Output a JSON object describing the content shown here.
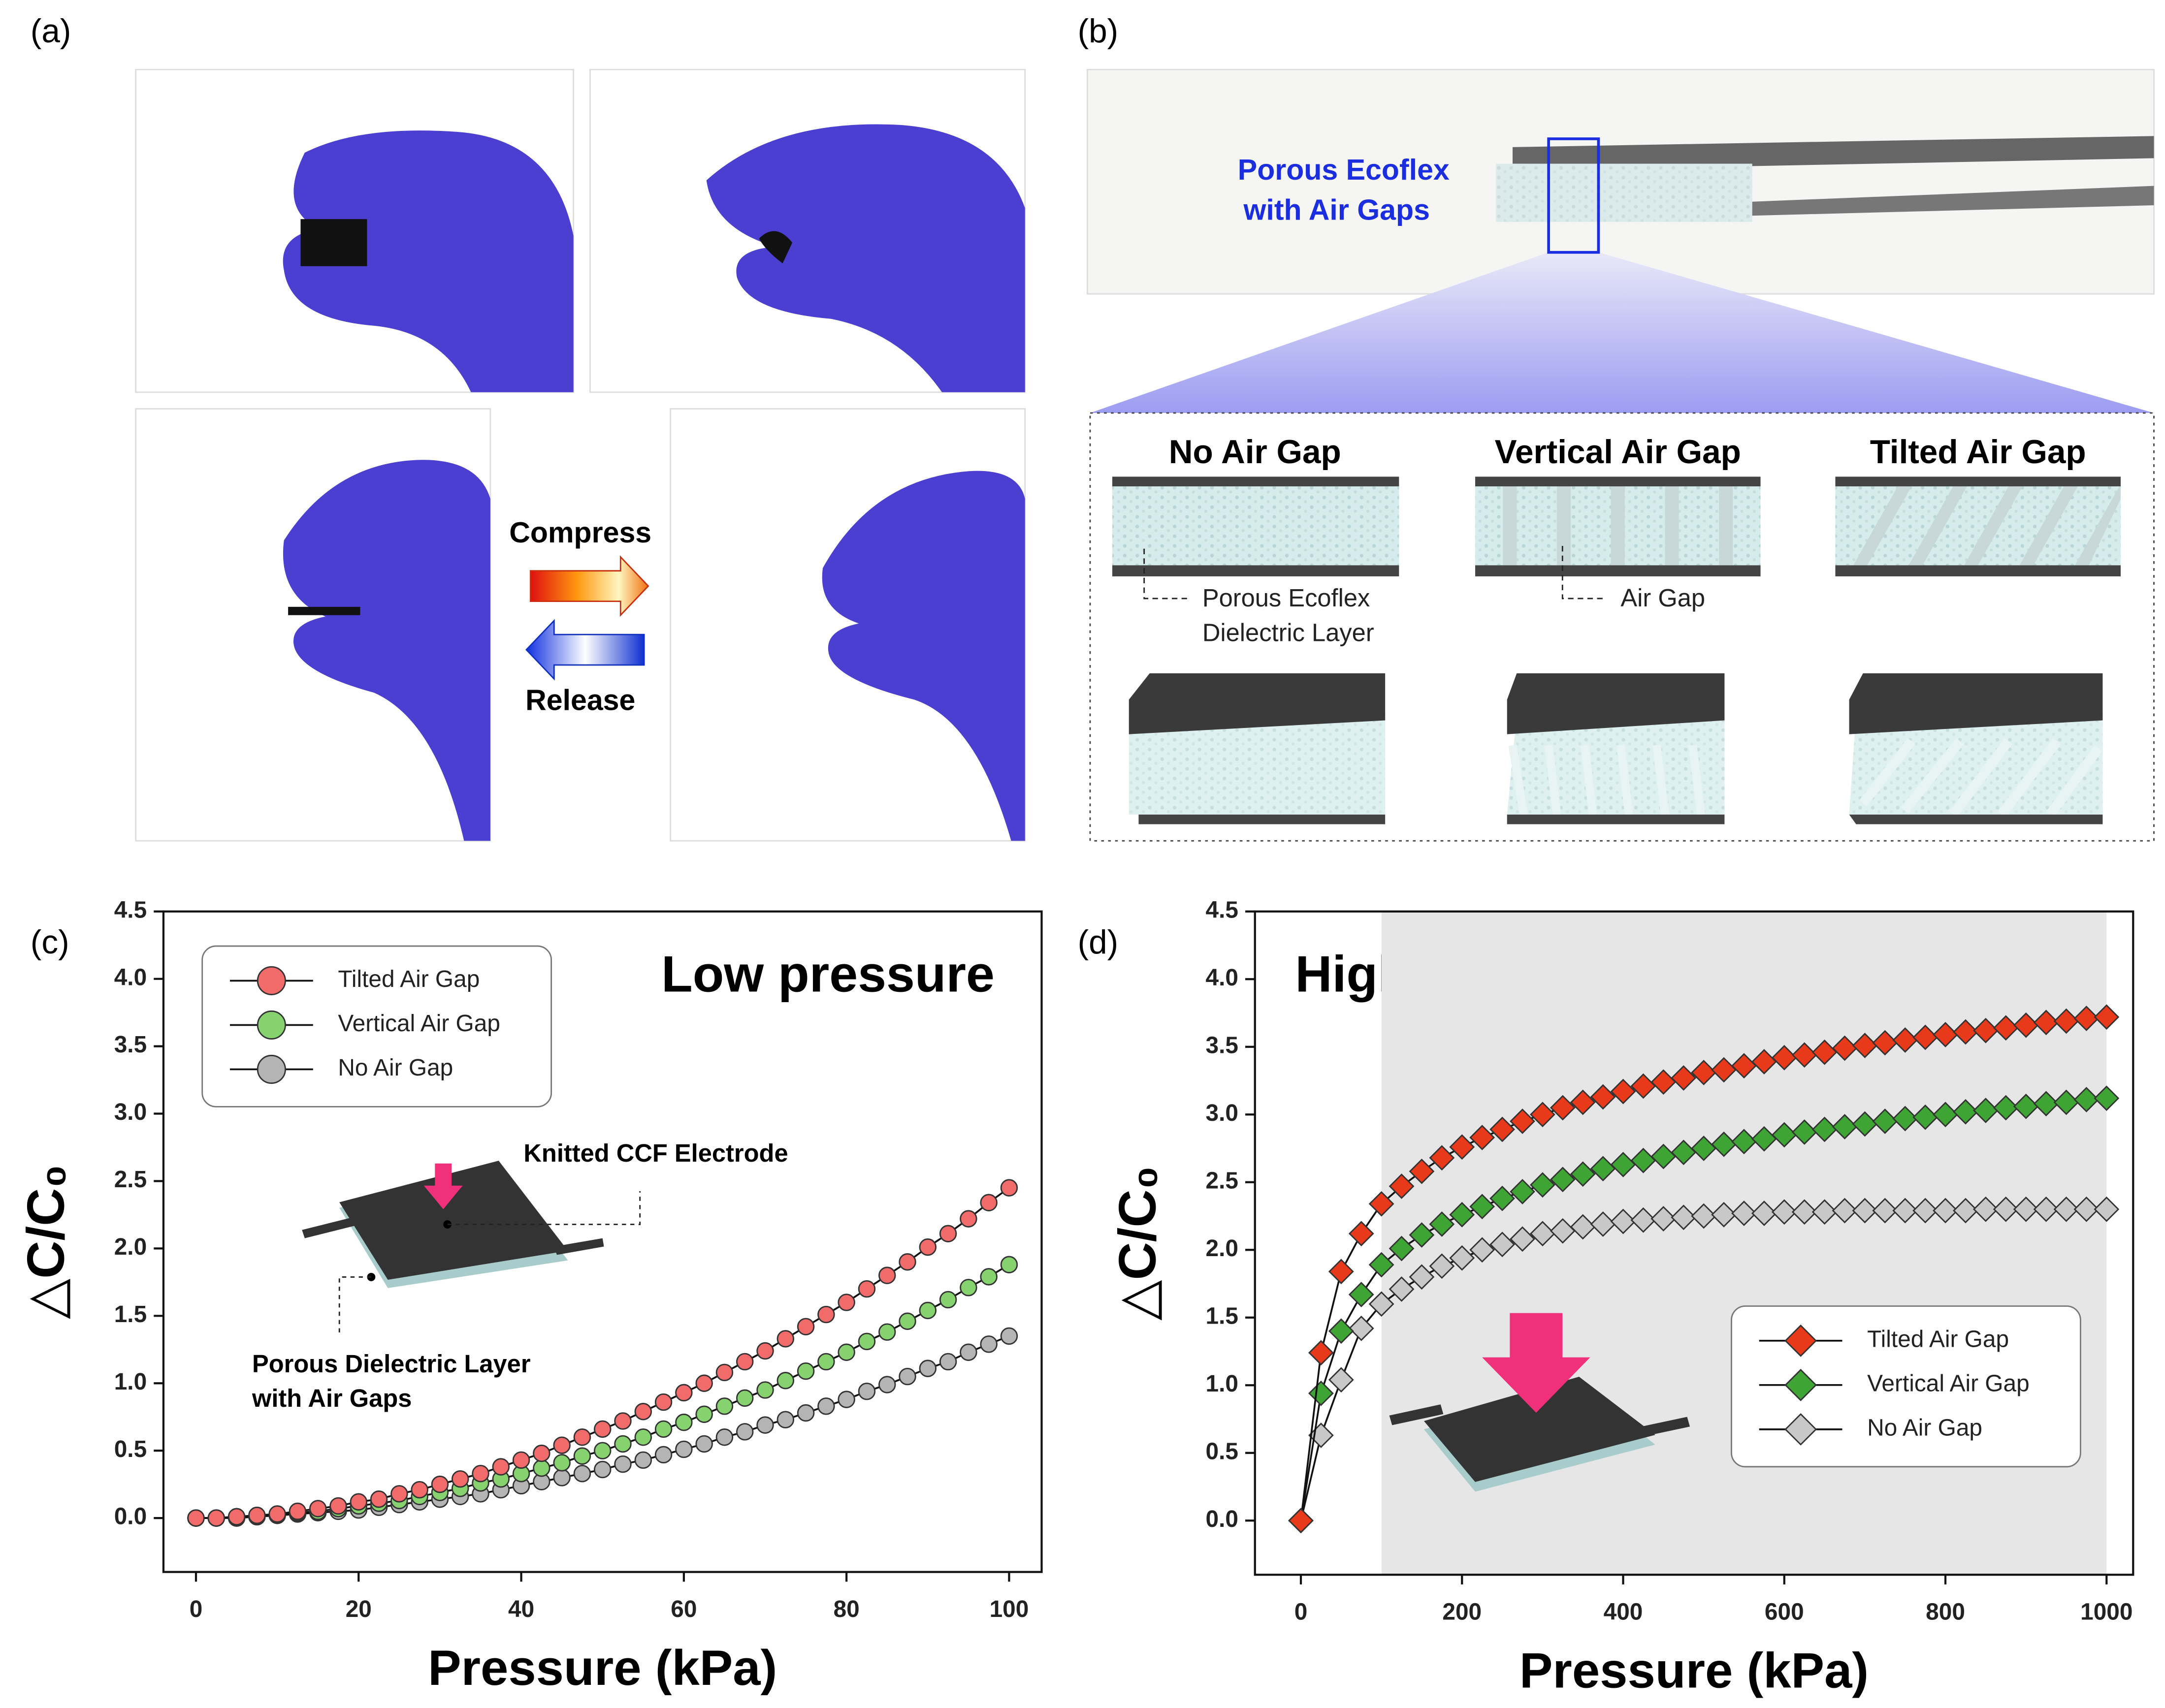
{
  "panel_labels": [
    "(a)",
    "(b)",
    "(c)",
    "(d)"
  ],
  "panel_a": {
    "compress": "Compress",
    "release": "Release"
  },
  "panel_b": {
    "sample_label": [
      "Porous Ecoflex",
      "with Air Gaps"
    ],
    "structures": [
      "No Air Gap",
      "Vertical Air Gap",
      "Tilted Air Gap"
    ],
    "callouts": {
      "dielectric": [
        "Porous Ecoflex",
        "Dielectric Layer"
      ],
      "air_gap": "Air Gap"
    }
  },
  "chart_data": [
    {
      "type": "line",
      "annotation": "Low pressure",
      "xlabel": "Pressure (kPa)",
      "ylabel": "△C/C₀",
      "marker": "circle",
      "legend": "upper left",
      "inset_labels": [
        "Knitted CCF Electrode",
        "Porous Dielectric Layer",
        "with Air Gaps"
      ],
      "xlim": [
        -4,
        104
      ],
      "ylim": [
        -0.4,
        4.5
      ],
      "xticks": [
        0,
        20,
        40,
        60,
        80,
        100
      ],
      "yticks": [
        {
          "value": 0,
          "label": "0.0"
        },
        0.5,
        {
          "value": 1,
          "label": "1.0"
        },
        1.5,
        {
          "value": 2,
          "label": "2.0"
        },
        2.5,
        {
          "value": 3,
          "label": "3.0"
        },
        3.5,
        {
          "value": 4,
          "label": "4.0"
        },
        4.5
      ],
      "x": [
        0,
        2.5,
        5,
        7.5,
        10,
        12.5,
        15,
        17.5,
        20,
        22.5,
        25,
        27.5,
        30,
        32.5,
        35,
        37.5,
        40,
        42.5,
        45,
        47.5,
        50,
        52.5,
        55,
        57.5,
        60,
        62.5,
        65,
        67.5,
        70,
        72.5,
        75,
        77.5,
        80,
        82.5,
        85,
        87.5,
        90,
        92.5,
        95,
        97.5,
        100
      ],
      "series": [
        {
          "name": "Tilted Air Gap",
          "color": "#f26b6b",
          "values": [
            0,
            0.0,
            0.01,
            0.02,
            0.03,
            0.05,
            0.07,
            0.09,
            0.12,
            0.14,
            0.18,
            0.21,
            0.25,
            0.29,
            0.33,
            0.38,
            0.43,
            0.48,
            0.54,
            0.6,
            0.66,
            0.72,
            0.79,
            0.86,
            0.93,
            1.0,
            1.08,
            1.16,
            1.24,
            1.33,
            1.42,
            1.51,
            1.6,
            1.7,
            1.8,
            1.9,
            2.01,
            2.11,
            2.22,
            2.34,
            2.45
          ]
        },
        {
          "name": "Vertical Air Gap",
          "color": "#86d26f",
          "values": [
            0,
            0.0,
            0.01,
            0.01,
            0.02,
            0.04,
            0.05,
            0.07,
            0.09,
            0.11,
            0.13,
            0.16,
            0.19,
            0.22,
            0.26,
            0.29,
            0.33,
            0.37,
            0.41,
            0.46,
            0.5,
            0.55,
            0.6,
            0.66,
            0.71,
            0.77,
            0.83,
            0.89,
            0.95,
            1.02,
            1.09,
            1.16,
            1.23,
            1.31,
            1.38,
            1.46,
            1.54,
            1.62,
            1.71,
            1.79,
            1.88
          ]
        },
        {
          "name": "No Air Gap",
          "color": "#b4b4b4",
          "values": [
            0,
            0.0,
            0.0,
            0.01,
            0.02,
            0.03,
            0.04,
            0.05,
            0.06,
            0.08,
            0.1,
            0.12,
            0.14,
            0.16,
            0.18,
            0.21,
            0.24,
            0.27,
            0.3,
            0.33,
            0.36,
            0.4,
            0.43,
            0.47,
            0.51,
            0.55,
            0.6,
            0.64,
            0.69,
            0.73,
            0.78,
            0.83,
            0.88,
            0.94,
            0.99,
            1.05,
            1.11,
            1.16,
            1.23,
            1.29,
            1.35
          ]
        }
      ]
    },
    {
      "type": "line",
      "annotation": "High pressure",
      "xlabel": "Pressure (kPa)",
      "ylabel": "△C/C₀",
      "marker": "diamond",
      "legend": "lower right",
      "shaded_xrange": [
        100,
        1000
      ],
      "xlim": [
        -57,
        1033
      ],
      "ylim": [
        -0.4,
        4.5
      ],
      "xticks": [
        0,
        200,
        400,
        600,
        800,
        1000
      ],
      "yticks": [
        {
          "value": 0,
          "label": "0.0"
        },
        0.5,
        {
          "value": 1,
          "label": "1.0"
        },
        1.5,
        {
          "value": 2,
          "label": "2.0"
        },
        2.5,
        {
          "value": 3,
          "label": "3.0"
        },
        3.5,
        {
          "value": 4,
          "label": "4.0"
        },
        4.5
      ],
      "x": [
        0,
        25,
        50,
        75,
        100,
        125,
        150,
        175,
        200,
        225,
        250,
        275,
        300,
        325,
        350,
        375,
        400,
        425,
        450,
        475,
        500,
        525,
        550,
        575,
        600,
        625,
        650,
        675,
        700,
        725,
        750,
        775,
        800,
        825,
        850,
        875,
        900,
        925,
        950,
        975,
        1000
      ],
      "series": [
        {
          "name": "Tilted Air Gap",
          "color": "#e8391a",
          "values": [
            0,
            1.24,
            1.84,
            2.12,
            2.34,
            2.47,
            2.58,
            2.68,
            2.76,
            2.83,
            2.89,
            2.95,
            3.0,
            3.05,
            3.09,
            3.13,
            3.17,
            3.21,
            3.24,
            3.27,
            3.31,
            3.33,
            3.36,
            3.39,
            3.42,
            3.44,
            3.46,
            3.49,
            3.51,
            3.53,
            3.55,
            3.57,
            3.59,
            3.61,
            3.62,
            3.64,
            3.66,
            3.68,
            3.69,
            3.71,
            3.72
          ]
        },
        {
          "name": "Vertical Air Gap",
          "color": "#3ea534",
          "values": [
            0,
            0.94,
            1.4,
            1.67,
            1.89,
            2.01,
            2.11,
            2.19,
            2.26,
            2.32,
            2.38,
            2.43,
            2.48,
            2.52,
            2.56,
            2.6,
            2.63,
            2.66,
            2.69,
            2.72,
            2.75,
            2.78,
            2.8,
            2.82,
            2.85,
            2.87,
            2.89,
            2.91,
            2.93,
            2.95,
            2.97,
            2.98,
            3.0,
            3.02,
            3.03,
            3.05,
            3.06,
            3.08,
            3.09,
            3.11,
            3.12
          ]
        },
        {
          "name": "No Air Gap",
          "color": "#c8c8c8",
          "values": [
            0,
            0.63,
            1.04,
            1.42,
            1.6,
            1.71,
            1.8,
            1.88,
            1.94,
            2.0,
            2.04,
            2.08,
            2.12,
            2.14,
            2.17,
            2.19,
            2.21,
            2.22,
            2.23,
            2.24,
            2.25,
            2.26,
            2.27,
            2.27,
            2.28,
            2.28,
            2.28,
            2.29,
            2.29,
            2.29,
            2.29,
            2.29,
            2.29,
            2.29,
            2.3,
            2.3,
            2.3,
            2.3,
            2.3,
            2.3,
            2.3
          ]
        }
      ]
    }
  ]
}
